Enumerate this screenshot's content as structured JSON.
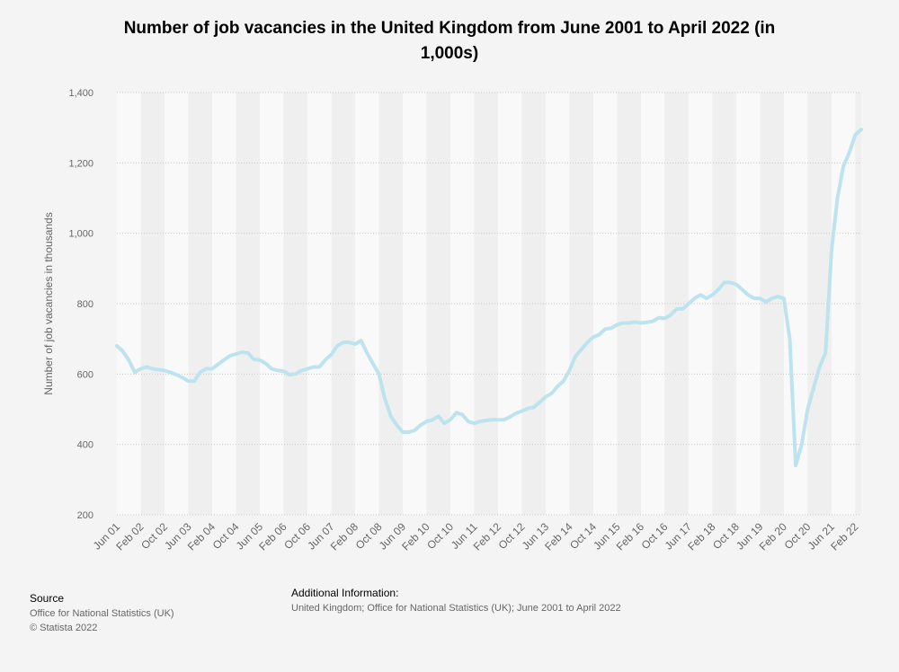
{
  "chart_data": {
    "type": "line",
    "title": "Number of job vacancies in the United Kingdom from June 2001 to April 2022 (in 1,000s)",
    "y_label": "Number of job vacancies in thousands",
    "categories": [
      "Jun 01",
      null,
      null,
      null,
      "Feb 02",
      null,
      null,
      null,
      "Oct 02",
      null,
      null,
      null,
      "Jun 03",
      null,
      null,
      null,
      "Feb 04",
      null,
      null,
      null,
      "Oct 04",
      null,
      null,
      null,
      "Jun 05",
      null,
      null,
      null,
      "Feb 06",
      null,
      null,
      null,
      "Oct 06",
      null,
      null,
      null,
      "Jun 07",
      null,
      null,
      null,
      "Feb 08",
      null,
      null,
      null,
      "Oct 08",
      null,
      null,
      null,
      "Jun 09",
      null,
      null,
      null,
      "Feb 10",
      null,
      null,
      null,
      "Oct 10",
      null,
      null,
      null,
      "Jun 11",
      null,
      null,
      null,
      "Feb 12",
      null,
      null,
      null,
      "Oct 12",
      null,
      null,
      null,
      "Jun 13",
      null,
      null,
      null,
      "Feb 14",
      null,
      null,
      null,
      "Oct 14",
      null,
      null,
      null,
      "Jun 15",
      null,
      null,
      null,
      "Feb 16",
      null,
      null,
      null,
      "Oct 16",
      null,
      null,
      null,
      "Jun 17",
      null,
      null,
      null,
      "Feb 18",
      null,
      null,
      null,
      "Oct 18",
      null,
      null,
      null,
      "Jun 19",
      null,
      null,
      null,
      "Feb 20",
      null,
      null,
      null,
      "Oct 20",
      null,
      null,
      null,
      "Jun 21",
      null,
      null,
      null,
      "Feb 22",
      null
    ],
    "series": [
      {
        "name": "Job vacancies",
        "color": "#bde3ef",
        "values": [
          680,
          665,
          640,
          605,
          615,
          620,
          615,
          612,
          610,
          605,
          598,
          590,
          580,
          580,
          605,
          615,
          615,
          628,
          640,
          652,
          657,
          662,
          660,
          642,
          640,
          630,
          615,
          610,
          608,
          598,
          600,
          610,
          615,
          620,
          620,
          640,
          655,
          680,
          690,
          690,
          685,
          695,
          660,
          630,
          600,
          530,
          480,
          455,
          435,
          435,
          440,
          455,
          465,
          470,
          480,
          460,
          470,
          490,
          485,
          465,
          460,
          465,
          468,
          470,
          470,
          470,
          478,
          488,
          495,
          502,
          505,
          520,
          535,
          545,
          565,
          580,
          610,
          650,
          670,
          690,
          705,
          712,
          728,
          730,
          740,
          745,
          745,
          748,
          745,
          747,
          750,
          760,
          758,
          768,
          785,
          785,
          800,
          815,
          825,
          815,
          825,
          840,
          860,
          860,
          855,
          840,
          825,
          815,
          815,
          805,
          815,
          820,
          815,
          700,
          340,
          400,
          500,
          560,
          620,
          660,
          950,
          1100,
          1190,
          1230,
          1280,
          1295
        ]
      }
    ],
    "ylim": [
      200,
      1400
    ],
    "yticks": [
      200,
      400,
      600,
      800,
      {
        "value": 1000,
        "label": "1,000"
      },
      {
        "value": 1200,
        "label": "1,200"
      },
      {
        "value": 1400,
        "label": "1,400"
      }
    ],
    "grid": true,
    "source_label": "Source",
    "source": [
      "Office for National Statistics (UK)",
      "© Statista 2022"
    ],
    "additional_info_label": "Additional Information:",
    "additional_info": "United Kingdom; Office for National Statistics (UK); June 2001 to April 2022"
  }
}
